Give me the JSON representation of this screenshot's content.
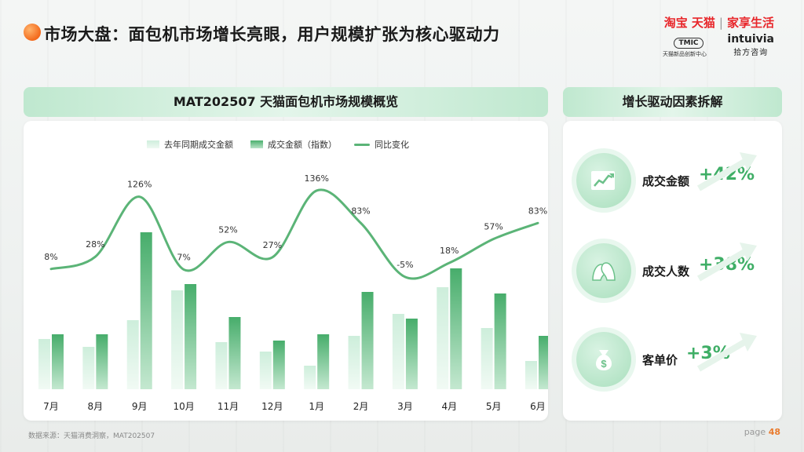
{
  "page": {
    "title": "市场大盘：面包机市场增长亮眼，用户规模扩张为核心驱动力",
    "brand": {
      "tmall": "淘宝 天猫",
      "separator": "|",
      "life": "家享生活"
    },
    "tmic": {
      "logo": "TMIC",
      "sub": "天猫新品创新中心"
    },
    "intuivia": {
      "en": "intuivia",
      "cn": "拾方咨询"
    },
    "source": "数据来源：天猫消费洞察，MAT202507",
    "page_label": "page",
    "page_number": "48"
  },
  "left_header": "MAT202507 天猫面包机市场规模概览",
  "right_header": "增长驱动因素拆解",
  "legend": {
    "last_year": "去年同期成交金额",
    "this_year": "成交金额（指数）",
    "yoy": "同比变化"
  },
  "chart_data": {
    "type": "bar",
    "categories": [
      "7月",
      "8月",
      "9月",
      "10月",
      "11月",
      "12月",
      "1月",
      "2月",
      "3月",
      "4月",
      "5月",
      "6月"
    ],
    "series": [
      {
        "name": "去年同期成交金额",
        "values": [
          32,
          27,
          44,
          63,
          30,
          24,
          15,
          34,
          48,
          65,
          39,
          18
        ]
      },
      {
        "name": "成交金额（指数）",
        "values": [
          35,
          35,
          100,
          67,
          46,
          31,
          35,
          62,
          45,
          77,
          61,
          34
        ]
      },
      {
        "name": "同比变化",
        "type": "line",
        "values": [
          8,
          28,
          126,
          7,
          52,
          27,
          136,
          83,
          -5,
          18,
          57,
          83
        ],
        "labels": [
          "8%",
          "28%",
          "126%",
          "7%",
          "52%",
          "27%",
          "136%",
          "83%",
          "-5%",
          "18%",
          "57%",
          "83%"
        ]
      }
    ]
  },
  "drivers": [
    {
      "label": "成交金额",
      "value": "+42%",
      "icon": "trend-chart-icon"
    },
    {
      "label": "成交人数",
      "value": "+38%",
      "icon": "people-icon"
    },
    {
      "label": "客单价",
      "value": "+3%",
      "icon": "money-bag-icon"
    }
  ],
  "colors": {
    "accent": "#3fae66",
    "line": "#5bb477",
    "bar_dark": "#4cb06f",
    "bar_light": "#d4efdf",
    "brand_red": "#e8262a"
  }
}
